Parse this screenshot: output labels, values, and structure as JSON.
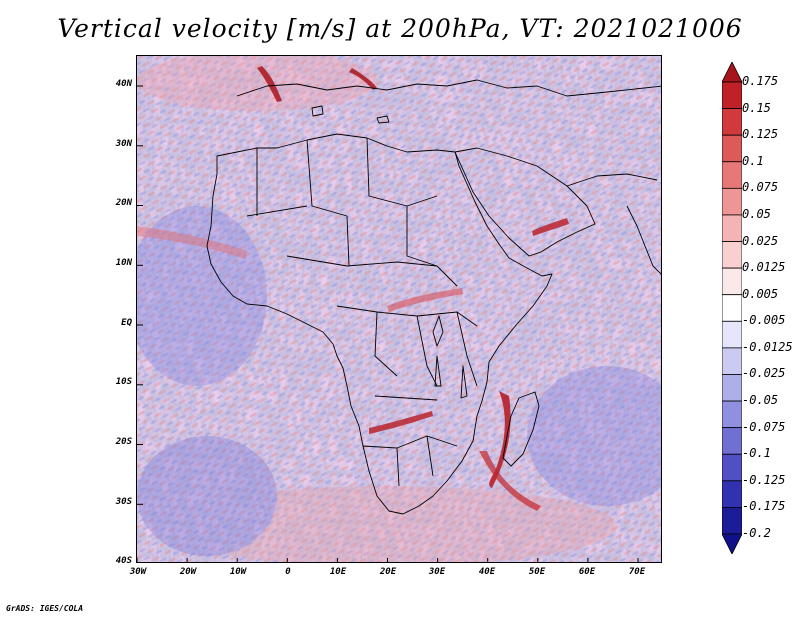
{
  "title": "Vertical velocity [m/s] at 200hPa, VT: 2021021006",
  "map": {
    "projection": "latlon",
    "lon_range": [
      -30,
      75
    ],
    "lat_range": [
      -40,
      45
    ],
    "lat_labels": [
      "40N",
      "30N",
      "20N",
      "10N",
      "EQ",
      "10S",
      "20S",
      "30S",
      "40S"
    ],
    "lon_labels": [
      "30W",
      "20W",
      "10W",
      "0",
      "10E",
      "20E",
      "30E",
      "40E",
      "50E",
      "60E",
      "70E"
    ],
    "field": "vertical velocity, mixed fine-scale red/blue streaks; strong red ascent over Madagascar and near the Ethiopian highlands"
  },
  "colorbar": {
    "labels": [
      "0.175",
      "0.15",
      "0.125",
      "0.1",
      "0.075",
      "0.05",
      "0.025",
      "0.0125",
      "0.005",
      "-0.005",
      "-0.0125",
      "-0.025",
      "-0.05",
      "-0.075",
      "-0.1",
      "-0.125",
      "-0.175",
      "-0.2"
    ],
    "colors": [
      "#a8141b",
      "#c02026",
      "#d03a3c",
      "#dc5a5a",
      "#e67878",
      "#ee9696",
      "#f4b4b4",
      "#f8d0d0",
      "#fbe8e8",
      "#ffffff",
      "#e6e6fa",
      "#cacaf2",
      "#aeaee8",
      "#9090de",
      "#7070d2",
      "#5050c4",
      "#3232b0",
      "#1c1c98",
      "#10108a"
    ]
  },
  "credit": "GrADS: IGES/COLA"
}
